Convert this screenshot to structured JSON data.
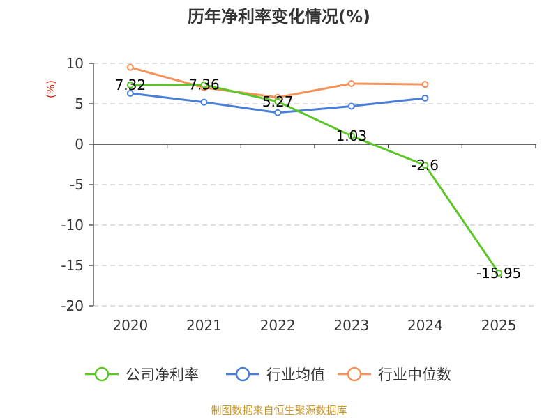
{
  "chart_data": {
    "type": "line",
    "title": "历年净利率变化情况(%)",
    "ylabel": "(%)",
    "xlabel": "",
    "categories": [
      "2020",
      "2021",
      "2022",
      "2023",
      "2024",
      "2025"
    ],
    "ylim": [
      -20,
      10
    ],
    "yticks": [
      10,
      5,
      0,
      -5,
      -10,
      -15,
      -20
    ],
    "grid": true,
    "legend_position": "bottom",
    "series": [
      {
        "name": "公司净利率",
        "color": "#5cc527",
        "values": [
          7.32,
          7.36,
          5.27,
          1.03,
          -2.6,
          -15.95
        ],
        "labels": [
          "7.32",
          "7.36",
          "5.27",
          "1.03",
          "-2.6",
          "-15.95"
        ]
      },
      {
        "name": "行业均值",
        "color": "#4a7fd6",
        "values": [
          6.3,
          5.2,
          3.9,
          4.7,
          5.7,
          null
        ]
      },
      {
        "name": "行业中位数",
        "color": "#f5915a",
        "values": [
          9.5,
          7.0,
          5.8,
          7.5,
          7.4,
          null
        ]
      }
    ]
  },
  "source_text": "制图数据来自恒生聚源数据库"
}
